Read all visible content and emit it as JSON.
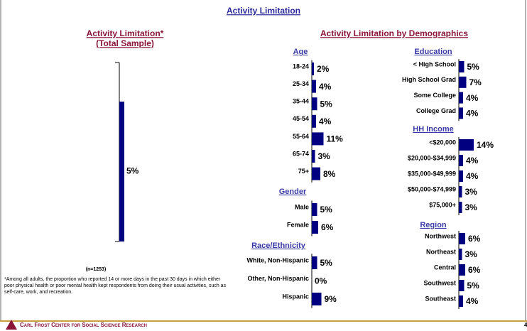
{
  "title": "Activity Limitation",
  "footer": "Carl Frost Center for Social Science Research",
  "page_number": "4",
  "footnote": "*Among all adults, the proportion who reported 14 or more days in the past 30 days in which either poor physical health or poor mental health kept respondents from doing their usual activities, such as self-care, work, and recreation.",
  "demographics_title": "Activity Limitation by Demographics",
  "chart_data": [
    {
      "type": "bar",
      "title": "Activity Limitation*",
      "subtitle": "(Total Sample)",
      "values": [
        5
      ],
      "value_labels": [
        "5%"
      ],
      "note": "(n=1253)",
      "color": "#000080",
      "ylim": [
        0,
        6.4
      ]
    },
    {
      "type": "hbar",
      "title": "Age",
      "categories": [
        "18-24",
        "25-34",
        "35-44",
        "45-54",
        "55-64",
        "65-74",
        "75+"
      ],
      "values": [
        2,
        4,
        5,
        4,
        11,
        3,
        8
      ],
      "value_labels": [
        "2%",
        "4%",
        "5%",
        "4%",
        "11%",
        "3%",
        "8%"
      ],
      "color": "#000080",
      "xlim": [
        0,
        100
      ]
    },
    {
      "type": "hbar",
      "title": "Gender",
      "categories": [
        "Male",
        "Female"
      ],
      "values": [
        5,
        6
      ],
      "value_labels": [
        "5%",
        "6%"
      ],
      "color": "#000080",
      "xlim": [
        0,
        100
      ]
    },
    {
      "type": "hbar",
      "title": "Race/Ethnicity",
      "categories": [
        "White, Non-Hispanic",
        "Other, Non-Hispanic",
        "Hispanic"
      ],
      "values": [
        5,
        0,
        9
      ],
      "value_labels": [
        "5%",
        "0%",
        "9%"
      ],
      "color": "#000080",
      "xlim": [
        0,
        100
      ]
    },
    {
      "type": "hbar",
      "title": "Education",
      "categories": [
        "< High School",
        "High School Grad",
        "Some College",
        "College Grad"
      ],
      "values": [
        5,
        7,
        4,
        4
      ],
      "value_labels": [
        "5%",
        "7%",
        "4%",
        "4%"
      ],
      "color": "#000080",
      "xlim": [
        0,
        100
      ]
    },
    {
      "type": "hbar",
      "title": "HH Income",
      "categories": [
        "<$20,000",
        "$20,000-$34,999",
        "$35,000-$49,999",
        "$50,000-$74,999",
        "$75,000+"
      ],
      "values": [
        14,
        4,
        4,
        3,
        3
      ],
      "value_labels": [
        "14%",
        "4%",
        "4%",
        "3%",
        "3%"
      ],
      "color": "#000080",
      "xlim": [
        0,
        100
      ]
    },
    {
      "type": "hbar",
      "title": "Region",
      "categories": [
        "Northwest",
        "Northeast",
        "Central",
        "Southwest",
        "Southeast"
      ],
      "values": [
        6,
        3,
        6,
        5,
        4
      ],
      "value_labels": [
        "6%",
        "3%",
        "6%",
        "5%",
        "4%"
      ],
      "color": "#000080",
      "xlim": [
        0,
        100
      ]
    }
  ]
}
